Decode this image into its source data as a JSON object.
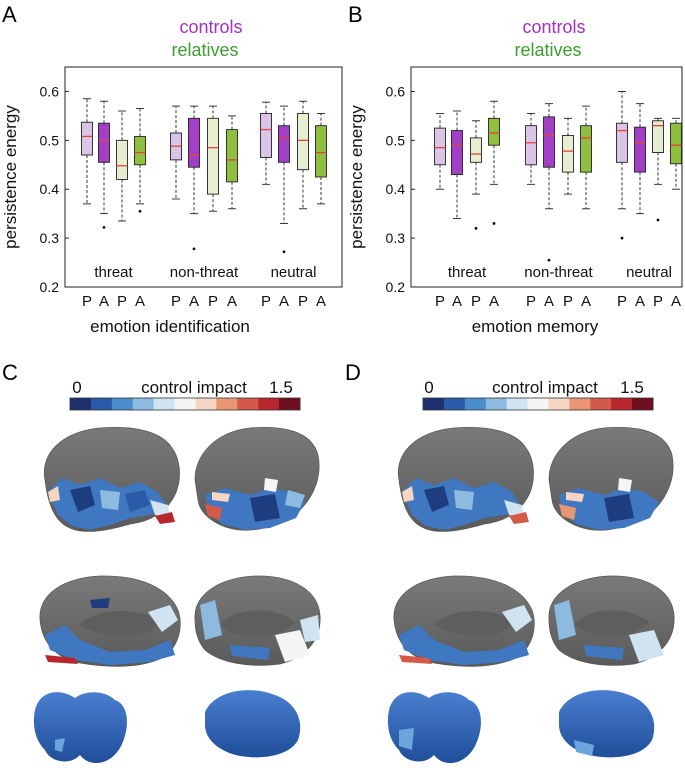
{
  "panels": {
    "A": "A",
    "B": "B",
    "C": "C",
    "D": "D"
  },
  "legend": {
    "controls": "controls",
    "relatives": "relatives"
  },
  "colors": {
    "controls_light": "#dcc3e8",
    "controls_dark": "#a23fc6",
    "relatives_light": "#e5efcf",
    "relatives_dark": "#8ebf3f",
    "median": "#e0443a",
    "controls_text": "#a233c4",
    "relatives_text": "#3b9e2e",
    "brain_gray": "#6e6e6e"
  },
  "colorbar": {
    "left_label": "0",
    "title": "control impact",
    "right_label": "1.5",
    "colors": [
      "#1e2f6e",
      "#2a5aa8",
      "#4a8ccc",
      "#8dbbe0",
      "#cfe3f1",
      "#f5f5f5",
      "#f6d5c2",
      "#e99673",
      "#d35a48",
      "#b8272d",
      "#6d0f1f"
    ]
  },
  "chart_data": [
    {
      "type": "box",
      "title": "",
      "xlabel": "emotion identification",
      "ylabel": "persistence energy",
      "ylim": [
        0.2,
        0.65
      ],
      "yticks": [
        "0.2",
        "0.3",
        "0.4",
        "0.5",
        "0.6"
      ],
      "ytick_values": [
        0.2,
        0.3,
        0.4,
        0.5,
        0.6
      ],
      "groups": [
        "threat",
        "non-threat",
        "neutral"
      ],
      "tick_labels": [
        "P",
        "A",
        "P",
        "A"
      ],
      "series": [
        {
          "name": "controls",
          "condition": "P",
          "style": "controls_light"
        },
        {
          "name": "controls",
          "condition": "A",
          "style": "controls_dark"
        },
        {
          "name": "relatives",
          "condition": "P",
          "style": "relatives_light"
        },
        {
          "name": "relatives",
          "condition": "A",
          "style": "relatives_dark"
        }
      ],
      "boxes": [
        [
          {
            "wlo": 0.37,
            "q1": 0.47,
            "med": 0.508,
            "q3": 0.537,
            "whi": 0.585
          },
          {
            "wlo": 0.35,
            "q1": 0.455,
            "med": 0.5,
            "q3": 0.535,
            "whi": 0.58,
            "outliers": [
              0.322
            ]
          },
          {
            "wlo": 0.335,
            "q1": 0.42,
            "med": 0.448,
            "q3": 0.5,
            "whi": 0.56
          },
          {
            "wlo": 0.37,
            "q1": 0.45,
            "med": 0.475,
            "q3": 0.508,
            "whi": 0.565,
            "outliers": [
              0.355
            ]
          }
        ],
        [
          {
            "wlo": 0.38,
            "q1": 0.46,
            "med": 0.488,
            "q3": 0.515,
            "whi": 0.57
          },
          {
            "wlo": 0.35,
            "q1": 0.445,
            "med": 0.47,
            "q3": 0.545,
            "whi": 0.57,
            "outliers": [
              0.278
            ]
          },
          {
            "wlo": 0.355,
            "q1": 0.39,
            "med": 0.485,
            "q3": 0.545,
            "whi": 0.57
          },
          {
            "wlo": 0.36,
            "q1": 0.415,
            "med": 0.46,
            "q3": 0.522,
            "whi": 0.55
          }
        ],
        [
          {
            "wlo": 0.41,
            "q1": 0.465,
            "med": 0.522,
            "q3": 0.555,
            "whi": 0.578
          },
          {
            "wlo": 0.33,
            "q1": 0.455,
            "med": 0.505,
            "q3": 0.53,
            "whi": 0.57,
            "outliers": [
              0.272
            ]
          },
          {
            "wlo": 0.36,
            "q1": 0.44,
            "med": 0.5,
            "q3": 0.555,
            "whi": 0.58
          },
          {
            "wlo": 0.37,
            "q1": 0.425,
            "med": 0.475,
            "q3": 0.53,
            "whi": 0.555
          }
        ]
      ]
    },
    {
      "type": "box",
      "title": "",
      "xlabel": "emotion memory",
      "ylabel": "persistence energy",
      "ylim": [
        0.2,
        0.65
      ],
      "yticks": [
        "0.2",
        "0.3",
        "0.4",
        "0.5",
        "0.6"
      ],
      "ytick_values": [
        0.2,
        0.3,
        0.4,
        0.5,
        0.6
      ],
      "groups": [
        "threat",
        "non-threat",
        "neutral"
      ],
      "tick_labels": [
        "P",
        "A",
        "P",
        "A"
      ],
      "series": [
        {
          "name": "controls",
          "condition": "P",
          "style": "controls_light"
        },
        {
          "name": "controls",
          "condition": "A",
          "style": "controls_dark"
        },
        {
          "name": "relatives",
          "condition": "P",
          "style": "relatives_light"
        },
        {
          "name": "relatives",
          "condition": "A",
          "style": "relatives_dark"
        }
      ],
      "boxes": [
        [
          {
            "wlo": 0.4,
            "q1": 0.45,
            "med": 0.485,
            "q3": 0.525,
            "whi": 0.555
          },
          {
            "wlo": 0.34,
            "q1": 0.43,
            "med": 0.49,
            "q3": 0.52,
            "whi": 0.56
          },
          {
            "wlo": 0.39,
            "q1": 0.455,
            "med": 0.472,
            "q3": 0.505,
            "whi": 0.54,
            "outliers": [
              0.32
            ]
          },
          {
            "wlo": 0.41,
            "q1": 0.49,
            "med": 0.515,
            "q3": 0.545,
            "whi": 0.58,
            "outliers": [
              0.33
            ]
          }
        ],
        [
          {
            "wlo": 0.41,
            "q1": 0.45,
            "med": 0.495,
            "q3": 0.53,
            "whi": 0.555
          },
          {
            "wlo": 0.36,
            "q1": 0.445,
            "med": 0.51,
            "q3": 0.548,
            "whi": 0.575,
            "outliers": [
              0.255
            ]
          },
          {
            "wlo": 0.39,
            "q1": 0.435,
            "med": 0.478,
            "q3": 0.51,
            "whi": 0.545
          },
          {
            "wlo": 0.36,
            "q1": 0.435,
            "med": 0.505,
            "q3": 0.53,
            "whi": 0.57
          }
        ],
        [
          {
            "wlo": 0.36,
            "q1": 0.455,
            "med": 0.52,
            "q3": 0.535,
            "whi": 0.6,
            "outliers": [
              0.3
            ]
          },
          {
            "wlo": 0.35,
            "q1": 0.435,
            "med": 0.495,
            "q3": 0.527,
            "whi": 0.575
          },
          {
            "wlo": 0.41,
            "q1": 0.475,
            "med": 0.53,
            "q3": 0.54,
            "whi": 0.545,
            "outliers": [
              0.337
            ]
          },
          {
            "wlo": 0.4,
            "q1": 0.452,
            "med": 0.49,
            "q3": 0.535,
            "whi": 0.545
          }
        ]
      ]
    }
  ]
}
